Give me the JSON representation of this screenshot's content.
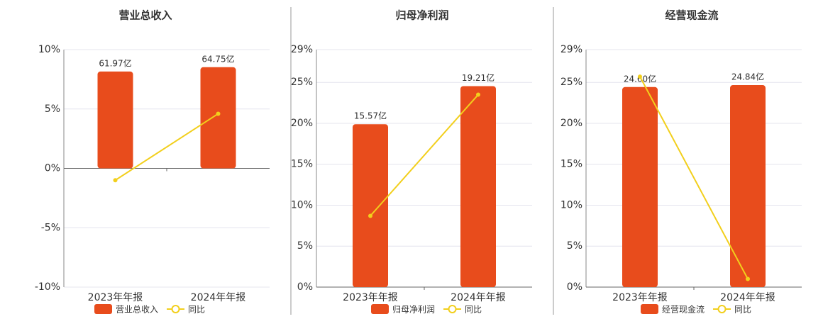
{
  "chart_data": [
    {
      "type": "bar-line",
      "title": "营业总收入",
      "categories": [
        "2023年年报",
        "2024年年报"
      ],
      "series": [
        {
          "name": "营业总收入",
          "type": "bar",
          "axis": "y2",
          "color": "#e84c1c",
          "values": [
            61.97,
            64.75
          ],
          "value_labels": [
            "61.97亿",
            "64.75亿"
          ]
        },
        {
          "name": "同比",
          "type": "line",
          "color": "#f2cf1c",
          "values": [
            -1.0,
            4.6
          ]
        }
      ],
      "ylim": [
        -10,
        10
      ],
      "yticks": [
        {
          "value": -10,
          "label": "-10%"
        },
        {
          "value": -5,
          "label": "-5%"
        },
        {
          "value": 0,
          "label": "0%"
        },
        {
          "value": 5,
          "label": "5%"
        },
        {
          "value": 10,
          "label": "10%"
        }
      ],
      "y2lim": [
        -76,
        76
      ],
      "grid": true,
      "legend": "bottom"
    },
    {
      "type": "bar-line",
      "title": "归母净利润",
      "categories": [
        "2023年年报",
        "2024年年报"
      ],
      "series": [
        {
          "name": "归母净利润",
          "type": "bar",
          "axis": "y2",
          "color": "#e84c1c",
          "values": [
            15.57,
            19.21
          ],
          "value_labels": [
            "15.57亿",
            "19.21亿"
          ]
        },
        {
          "name": "同比",
          "type": "line",
          "color": "#f2cf1c",
          "values": [
            8.7,
            23.5
          ]
        }
      ],
      "ylim": [
        0,
        29
      ],
      "yticks": [
        {
          "value": 0,
          "label": "0%"
        },
        {
          "value": 5,
          "label": "5%"
        },
        {
          "value": 10,
          "label": "10%"
        },
        {
          "value": 15,
          "label": "15%"
        },
        {
          "value": 20,
          "label": "20%"
        },
        {
          "value": 25,
          "label": "25%"
        },
        {
          "value": 29,
          "label": "29%"
        }
      ],
      "y2lim": [
        0,
        22.7
      ],
      "grid": true,
      "legend": "bottom"
    },
    {
      "type": "bar-line",
      "title": "经营现金流",
      "categories": [
        "2023年年报",
        "2024年年报"
      ],
      "series": [
        {
          "name": "经营现金流",
          "type": "bar",
          "axis": "y2",
          "color": "#e84c1c",
          "values": [
            24.6,
            24.84
          ],
          "value_labels": [
            "24.60亿",
            "24.84亿"
          ]
        },
        {
          "name": "同比",
          "type": "line",
          "color": "#f2cf1c",
          "values": [
            25.7,
            1.0
          ]
        }
      ],
      "ylim": [
        0,
        29
      ],
      "yticks": [
        {
          "value": 0,
          "label": "0%"
        },
        {
          "value": 5,
          "label": "5%"
        },
        {
          "value": 10,
          "label": "10%"
        },
        {
          "value": 15,
          "label": "15%"
        },
        {
          "value": 20,
          "label": "20%"
        },
        {
          "value": 25,
          "label": "25%"
        },
        {
          "value": 29,
          "label": "29%"
        }
      ],
      "y2lim": [
        0,
        29.2
      ],
      "grid": true,
      "legend": "bottom"
    }
  ]
}
